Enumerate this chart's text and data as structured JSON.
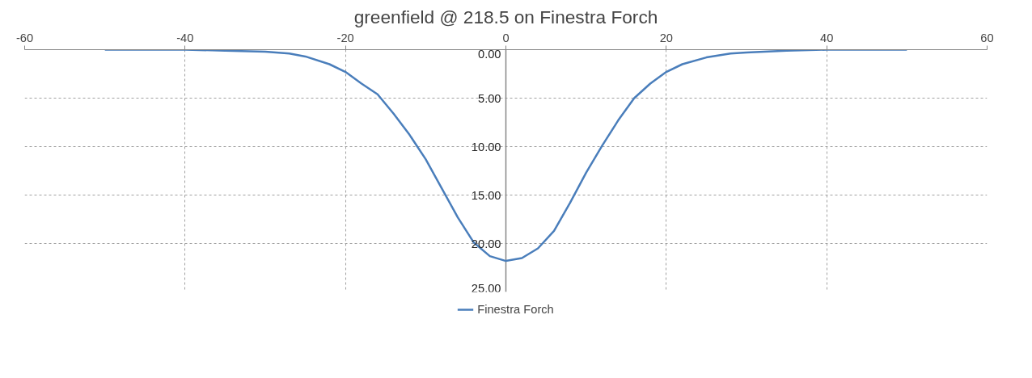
{
  "chart_data": {
    "type": "line",
    "title": "greenfield @ 218.5 on Finestra Forch",
    "x": [
      -50,
      -40,
      -35,
      -30,
      -27,
      -25,
      -22,
      -20,
      -18,
      -16,
      -14,
      -12,
      -10,
      -8,
      -6,
      -4,
      -2,
      0,
      2,
      4,
      6,
      8,
      10,
      12,
      14,
      16,
      18,
      20,
      22,
      25,
      28,
      30,
      35,
      40,
      50
    ],
    "series": [
      {
        "name": "Finestra Forch",
        "color": "#4a7ebb",
        "values": [
          0,
          0,
          0.1,
          0.2,
          0.4,
          0.7,
          1.5,
          2.3,
          3.5,
          4.6,
          6.6,
          8.8,
          11.3,
          14.3,
          17.3,
          19.9,
          21.3,
          21.8,
          21.5,
          20.5,
          18.7,
          15.8,
          12.7,
          9.9,
          7.3,
          5.0,
          3.5,
          2.3,
          1.5,
          0.8,
          0.4,
          0.3,
          0.1,
          0,
          0
        ]
      }
    ],
    "xlim": [
      -60,
      60
    ],
    "xticks": [
      -60,
      -40,
      -20,
      0,
      20,
      40,
      60
    ],
    "ylim": [
      25,
      0
    ],
    "yticks": [
      {
        "value": 0,
        "label": "0.00"
      },
      {
        "value": 5,
        "label": "5.00"
      },
      {
        "value": 10,
        "label": "10.00"
      },
      {
        "value": 15,
        "label": "15.00"
      },
      {
        "value": 20,
        "label": "20.00"
      },
      {
        "value": 25,
        "label": "25.00"
      }
    ],
    "grid": true,
    "legend": "bottom",
    "marker": "none",
    "line_style": "solid"
  }
}
